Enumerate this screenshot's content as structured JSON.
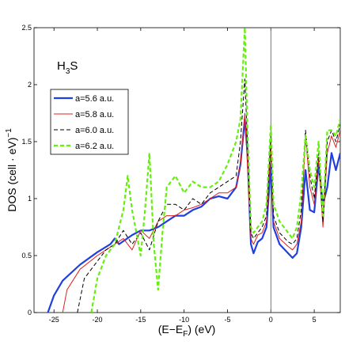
{
  "chart_data": {
    "type": "line",
    "annotation": [
      "H",
      "3",
      "S"
    ],
    "xlabel": [
      "(E−E",
      "F",
      ") (eV)"
    ],
    "ylabel": [
      "DOS (cell · eV)",
      "−1"
    ],
    "xlim": [
      -27.3,
      8
    ],
    "ylim": [
      0,
      2.5
    ],
    "xticks": [
      -25,
      -20,
      -15,
      -10,
      -5,
      0,
      5
    ],
    "yticks": [
      0,
      0.5,
      1,
      1.5,
      2,
      2.5
    ],
    "vline": 0,
    "legend": "upper left",
    "series": [
      {
        "name": "a=5.6 a.u.",
        "color": "#1f3fe0",
        "linestyle": "solid",
        "linewidth": 2.2,
        "x": [
          -25.7,
          -25,
          -24,
          -22,
          -20,
          -18.5,
          -18,
          -17.5,
          -16,
          -15,
          -14,
          -13,
          -12,
          -11,
          -10,
          -9,
          -8,
          -7,
          -6,
          -5,
          -4,
          -3.5,
          -3,
          -2.7,
          -2.3,
          -2,
          -1.5,
          -1,
          -0.5,
          0,
          0.3,
          1,
          2,
          2.5,
          3,
          3.5,
          4,
          4.5,
          5,
          5.5,
          6,
          6.5,
          7,
          7.5,
          8
        ],
        "values": [
          0,
          0.15,
          0.28,
          0.42,
          0.53,
          0.6,
          0.65,
          0.6,
          0.68,
          0.72,
          0.72,
          0.75,
          0.8,
          0.85,
          0.85,
          0.9,
          0.93,
          1.0,
          1.02,
          1.0,
          1.1,
          1.3,
          1.7,
          1.4,
          0.6,
          0.52,
          0.62,
          0.65,
          0.75,
          1.3,
          0.75,
          0.6,
          0.52,
          0.48,
          0.52,
          0.75,
          1.25,
          0.9,
          0.88,
          1.3,
          0.95,
          1.1,
          1.4,
          1.25,
          1.4
        ]
      },
      {
        "name": "a=5.8 a.u.",
        "color": "#e02020",
        "linestyle": "solid",
        "linewidth": 1,
        "x": [
          -24,
          -23.5,
          -22,
          -20,
          -18,
          -17,
          -16,
          -15,
          -14,
          -13,
          -12,
          -11,
          -10,
          -9,
          -8,
          -7,
          -6,
          -5,
          -4,
          -3.5,
          -3,
          -2.7,
          -2.3,
          -2,
          -1.5,
          -1,
          -0.5,
          0,
          0.3,
          1,
          2,
          2.5,
          3,
          3.5,
          4,
          4.5,
          5,
          5.5,
          6,
          6.5,
          7,
          7.5,
          8
        ],
        "values": [
          0,
          0.2,
          0.38,
          0.5,
          0.6,
          0.65,
          0.55,
          0.72,
          0.65,
          0.8,
          0.85,
          0.85,
          0.9,
          0.92,
          0.95,
          1.0,
          1.05,
          1.05,
          1.1,
          1.3,
          1.75,
          1.3,
          0.65,
          0.6,
          0.68,
          0.7,
          0.8,
          1.45,
          0.8,
          0.65,
          0.58,
          0.55,
          0.6,
          0.8,
          1.55,
          1.1,
          0.95,
          1.35,
          0.75,
          1.4,
          1.55,
          1.45,
          1.6
        ]
      },
      {
        "name": "a=6.0 a.u.",
        "color": "#000000",
        "linestyle": "dashed",
        "linewidth": 1,
        "x": [
          -22.3,
          -21.5,
          -20,
          -19,
          -18,
          -17,
          -16,
          -15,
          -14,
          -13,
          -12,
          -11,
          -10,
          -9,
          -8,
          -7,
          -6,
          -5,
          -4,
          -3.5,
          -3,
          -2.7,
          -2.3,
          -2,
          -1.5,
          -1,
          -0.5,
          0,
          0.3,
          1,
          2,
          2.5,
          3,
          3.5,
          4,
          4.5,
          5,
          5.5,
          6,
          6.5,
          7,
          7.5,
          8
        ],
        "values": [
          0,
          0.3,
          0.45,
          0.55,
          0.6,
          0.72,
          0.6,
          0.7,
          0.55,
          0.8,
          0.95,
          0.95,
          0.9,
          1.0,
          0.95,
          1.05,
          1.1,
          1.15,
          1.2,
          1.5,
          2.05,
          1.5,
          0.7,
          0.65,
          0.7,
          0.75,
          0.85,
          1.55,
          0.85,
          0.7,
          0.62,
          0.6,
          0.65,
          0.9,
          1.6,
          1.2,
          1.0,
          1.4,
          0.8,
          1.5,
          1.6,
          1.5,
          1.65
        ]
      },
      {
        "name": "a=6.2 a.u.",
        "color": "#66ee11",
        "linestyle": "dashed",
        "linewidth": 2.2,
        "x": [
          -20.7,
          -20,
          -19,
          -18,
          -17,
          -16.5,
          -16,
          -15.5,
          -15,
          -14.5,
          -14,
          -13.5,
          -13,
          -12.5,
          -12,
          -11,
          -10,
          -9,
          -8,
          -7,
          -6,
          -5,
          -4,
          -3.5,
          -3,
          -2.7,
          -2.3,
          -2,
          -1.5,
          -1,
          -0.5,
          0,
          0.3,
          1,
          2,
          2.5,
          3,
          3.5,
          4,
          4.5,
          5,
          5.5,
          6,
          6.5,
          7,
          7.5,
          8
        ],
        "values": [
          0,
          0.3,
          0.5,
          0.6,
          0.9,
          1.2,
          0.9,
          0.7,
          0.5,
          0.9,
          1.4,
          0.6,
          0.2,
          0.7,
          1.1,
          1.2,
          1.05,
          1.15,
          1.1,
          1.1,
          1.15,
          1.3,
          1.5,
          1.7,
          2.5,
          1.6,
          0.75,
          0.7,
          0.75,
          0.8,
          0.95,
          1.65,
          0.95,
          0.8,
          0.7,
          0.65,
          0.75,
          1.05,
          1.55,
          1.25,
          1.1,
          1.5,
          0.85,
          1.6,
          1.6,
          1.55,
          1.7
        ]
      }
    ]
  }
}
